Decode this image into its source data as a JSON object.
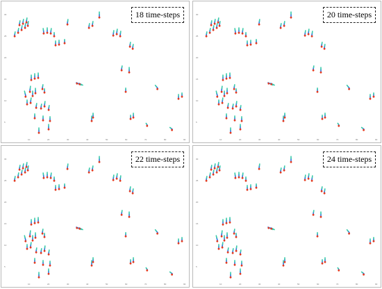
{
  "panels": [
    {
      "label": "18 time-steps"
    },
    {
      "label": "20 time-steps"
    },
    {
      "label": "22 time-steps"
    },
    {
      "label": "24 time-steps"
    }
  ],
  "colors": {
    "trail_start": "#2f6fe0",
    "trail_mid": "#37c9a8",
    "trail_end": "#e23a20",
    "frame": "#b9b9b9",
    "axis_tick": "#777777"
  }
}
